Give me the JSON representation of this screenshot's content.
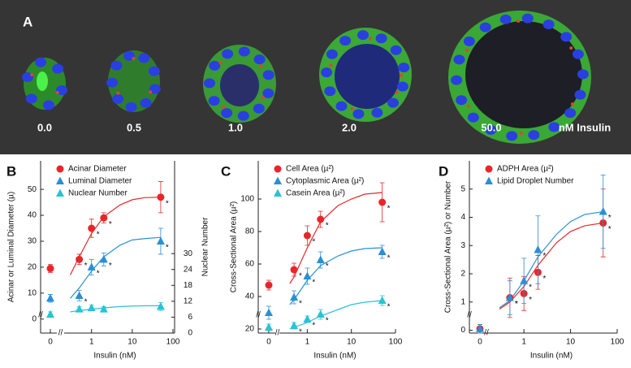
{
  "panel_a": {
    "label": "A",
    "captions": [
      "0.0",
      "0.5",
      "1.0",
      "2.0",
      "50.0"
    ],
    "unit": "nM Insulin"
  },
  "chart_data": [
    {
      "type": "scatter",
      "panel": "B",
      "xlabel": "Insulin (nM)",
      "ylabel": "Acinar or Luminal Diameter (µ)",
      "y2label": "Nuclear Number",
      "xscale": "log",
      "xlim": [
        0.28,
        100
      ],
      "xticks": [
        0,
        1,
        10,
        100
      ],
      "ylim": [
        -5.4,
        61
      ],
      "yticks": [
        0,
        10,
        20,
        30,
        40,
        50
      ],
      "y2lim": [
        0,
        65
      ],
      "y2ticks": [
        0,
        6,
        12,
        18,
        24,
        30
      ],
      "axis_break": "//",
      "legend": "upper left",
      "series": [
        {
          "name": "Acinar Diameter",
          "color": "#e8262a",
          "marker": "circle",
          "x": [
            0,
            0.5,
            1,
            2,
            50
          ],
          "values": [
            19.5,
            23,
            35,
            39,
            47
          ],
          "errors": [
            1.5,
            2,
            3.5,
            2,
            6
          ],
          "significance": [
            null,
            "*",
            "*",
            "*",
            "*"
          ]
        },
        {
          "name": "Luminal Diameter",
          "color": "#2a8fd6",
          "marker": "triangle",
          "x": [
            0,
            0.5,
            1,
            2,
            50
          ],
          "values": [
            8,
            9,
            20,
            23,
            30
          ],
          "errors": [
            1.5,
            2,
            3,
            2.5,
            5
          ],
          "significance": [
            null,
            "*",
            "*",
            "*",
            "*"
          ]
        },
        {
          "name": "Nuclear Number",
          "color": "#29c3d4",
          "marker": "triangle",
          "axis": "y2",
          "x": [
            0,
            0.5,
            1,
            2,
            50
          ],
          "values": [
            7,
            9,
            9.5,
            9,
            10
          ],
          "errors": [
            1,
            1,
            1,
            1,
            1.5
          ]
        }
      ],
      "fits": [
        {
          "color": "#e8262a",
          "x": [
            0.3,
            0.5,
            1,
            2,
            5,
            10,
            20,
            50
          ],
          "values": [
            17,
            24,
            33,
            39.5,
            44,
            46,
            46.8,
            47
          ]
        },
        {
          "color": "#2a8fd6",
          "x": [
            0.3,
            0.5,
            1,
            2,
            5,
            10,
            20,
            50
          ],
          "values": [
            8,
            12,
            18.5,
            24,
            28.5,
            30.5,
            31,
            31.5
          ]
        },
        {
          "color": "#29c3d4",
          "axis": "y2",
          "x": [
            0.3,
            0.5,
            1,
            2,
            5,
            10,
            20,
            50
          ],
          "values": [
            8,
            8.5,
            9,
            9.5,
            10,
            10.2,
            10.3,
            10.3
          ]
        }
      ]
    },
    {
      "type": "scatter",
      "panel": "C",
      "xlabel": "Insulin (nM)",
      "ylabel": "Cross-Sectional Area (µ²)",
      "xscale": "log",
      "xlim": [
        0.3,
        100
      ],
      "xticks": [
        0,
        1,
        10,
        100
      ],
      "ylim": [
        17.5,
        123.5
      ],
      "yticks": [
        20,
        40,
        60,
        80,
        100
      ],
      "axis_break": "//",
      "legend": "upper left",
      "series": [
        {
          "name": "Cell Area (µ²)",
          "color": "#e8262a",
          "marker": "circle",
          "x": [
            0,
            0.5,
            1,
            2,
            50
          ],
          "values": [
            47,
            56.5,
            77.5,
            87.5,
            98
          ],
          "errors": [
            3,
            4,
            6,
            5,
            12
          ],
          "significance": [
            null,
            "*",
            "*",
            "*",
            "*"
          ]
        },
        {
          "name": "Cytoplasmic Area (µ²)",
          "color": "#2a8fd6",
          "marker": "triangle",
          "x": [
            0,
            0.5,
            1,
            2,
            50
          ],
          "values": [
            30,
            39.5,
            52.5,
            62.5,
            67.5
          ],
          "errors": [
            4,
            4,
            5,
            5,
            4
          ],
          "significance": [
            null,
            "*",
            "*",
            "*",
            "*"
          ]
        },
        {
          "name": "Casein Area (µ²)",
          "color": "#29c3d4",
          "marker": "triangle",
          "x": [
            0,
            0.5,
            1,
            2,
            50
          ],
          "values": [
            21,
            22,
            26,
            29,
            37.5
          ],
          "errors": [
            2,
            2,
            2,
            3,
            3
          ],
          "significance": [
            null,
            "*",
            "*",
            "*",
            "*"
          ]
        }
      ],
      "fits": [
        {
          "color": "#e8262a",
          "x": [
            0.4,
            0.5,
            1,
            2,
            5,
            10,
            20,
            50
          ],
          "values": [
            48,
            52,
            70,
            86,
            96,
            100,
            103,
            104
          ]
        },
        {
          "color": "#2a8fd6",
          "x": [
            0.4,
            0.5,
            1,
            2,
            5,
            10,
            20,
            50
          ],
          "values": [
            35,
            38,
            50,
            59,
            65,
            68,
            69.5,
            70
          ]
        },
        {
          "color": "#29c3d4",
          "x": [
            0.4,
            0.5,
            1,
            2,
            5,
            10,
            20,
            50
          ],
          "values": [
            20,
            21,
            24,
            28,
            32,
            35,
            36.5,
            37.5
          ]
        }
      ]
    },
    {
      "type": "scatter",
      "panel": "D",
      "xlabel": "Insulin (nM)",
      "ylabel": "Cross-Sectional Area (µ²) or Number",
      "xscale": "log",
      "xlim": [
        0.2,
        100
      ],
      "xticks": [
        0,
        1,
        10,
        100
      ],
      "ylim": [
        -0.1,
        6.0
      ],
      "yticks": [
        0,
        1,
        2,
        3,
        4,
        5
      ],
      "axis_break": "//",
      "legend": "upper left",
      "series": [
        {
          "name": "ADPH Area (µ²)",
          "color": "#e8262a",
          "marker": "circle",
          "x": [
            0,
            0.5,
            1,
            2,
            50
          ],
          "values": [
            0.05,
            1.15,
            1.3,
            2.05,
            3.8
          ],
          "errors": [
            0.15,
            0.7,
            0.6,
            0.6,
            1.2
          ],
          "significance": [
            null,
            "*",
            "*",
            "*",
            "*"
          ]
        },
        {
          "name": "Lipid Droplet Number",
          "color": "#2a8fd6",
          "marker": "triangle",
          "x": [
            0,
            0.5,
            1,
            2,
            50
          ],
          "values": [
            0.05,
            1.15,
            1.75,
            2.85,
            4.2
          ],
          "errors": [
            0.15,
            0.6,
            0.8,
            1.2,
            1.3
          ],
          "significance": [
            null,
            "*",
            "*",
            "*",
            "*"
          ]
        }
      ],
      "fits": [
        {
          "color": "#e8262a",
          "x": [
            0.3,
            0.5,
            1,
            2,
            5,
            10,
            20,
            50
          ],
          "values": [
            0.75,
            1.0,
            1.55,
            2.3,
            3.1,
            3.5,
            3.7,
            3.8
          ]
        },
        {
          "color": "#2a8fd6",
          "x": [
            0.3,
            0.5,
            1,
            2,
            5,
            10,
            20,
            50
          ],
          "values": [
            0.8,
            1.05,
            1.75,
            2.6,
            3.4,
            3.85,
            4.1,
            4.2
          ]
        }
      ]
    }
  ]
}
